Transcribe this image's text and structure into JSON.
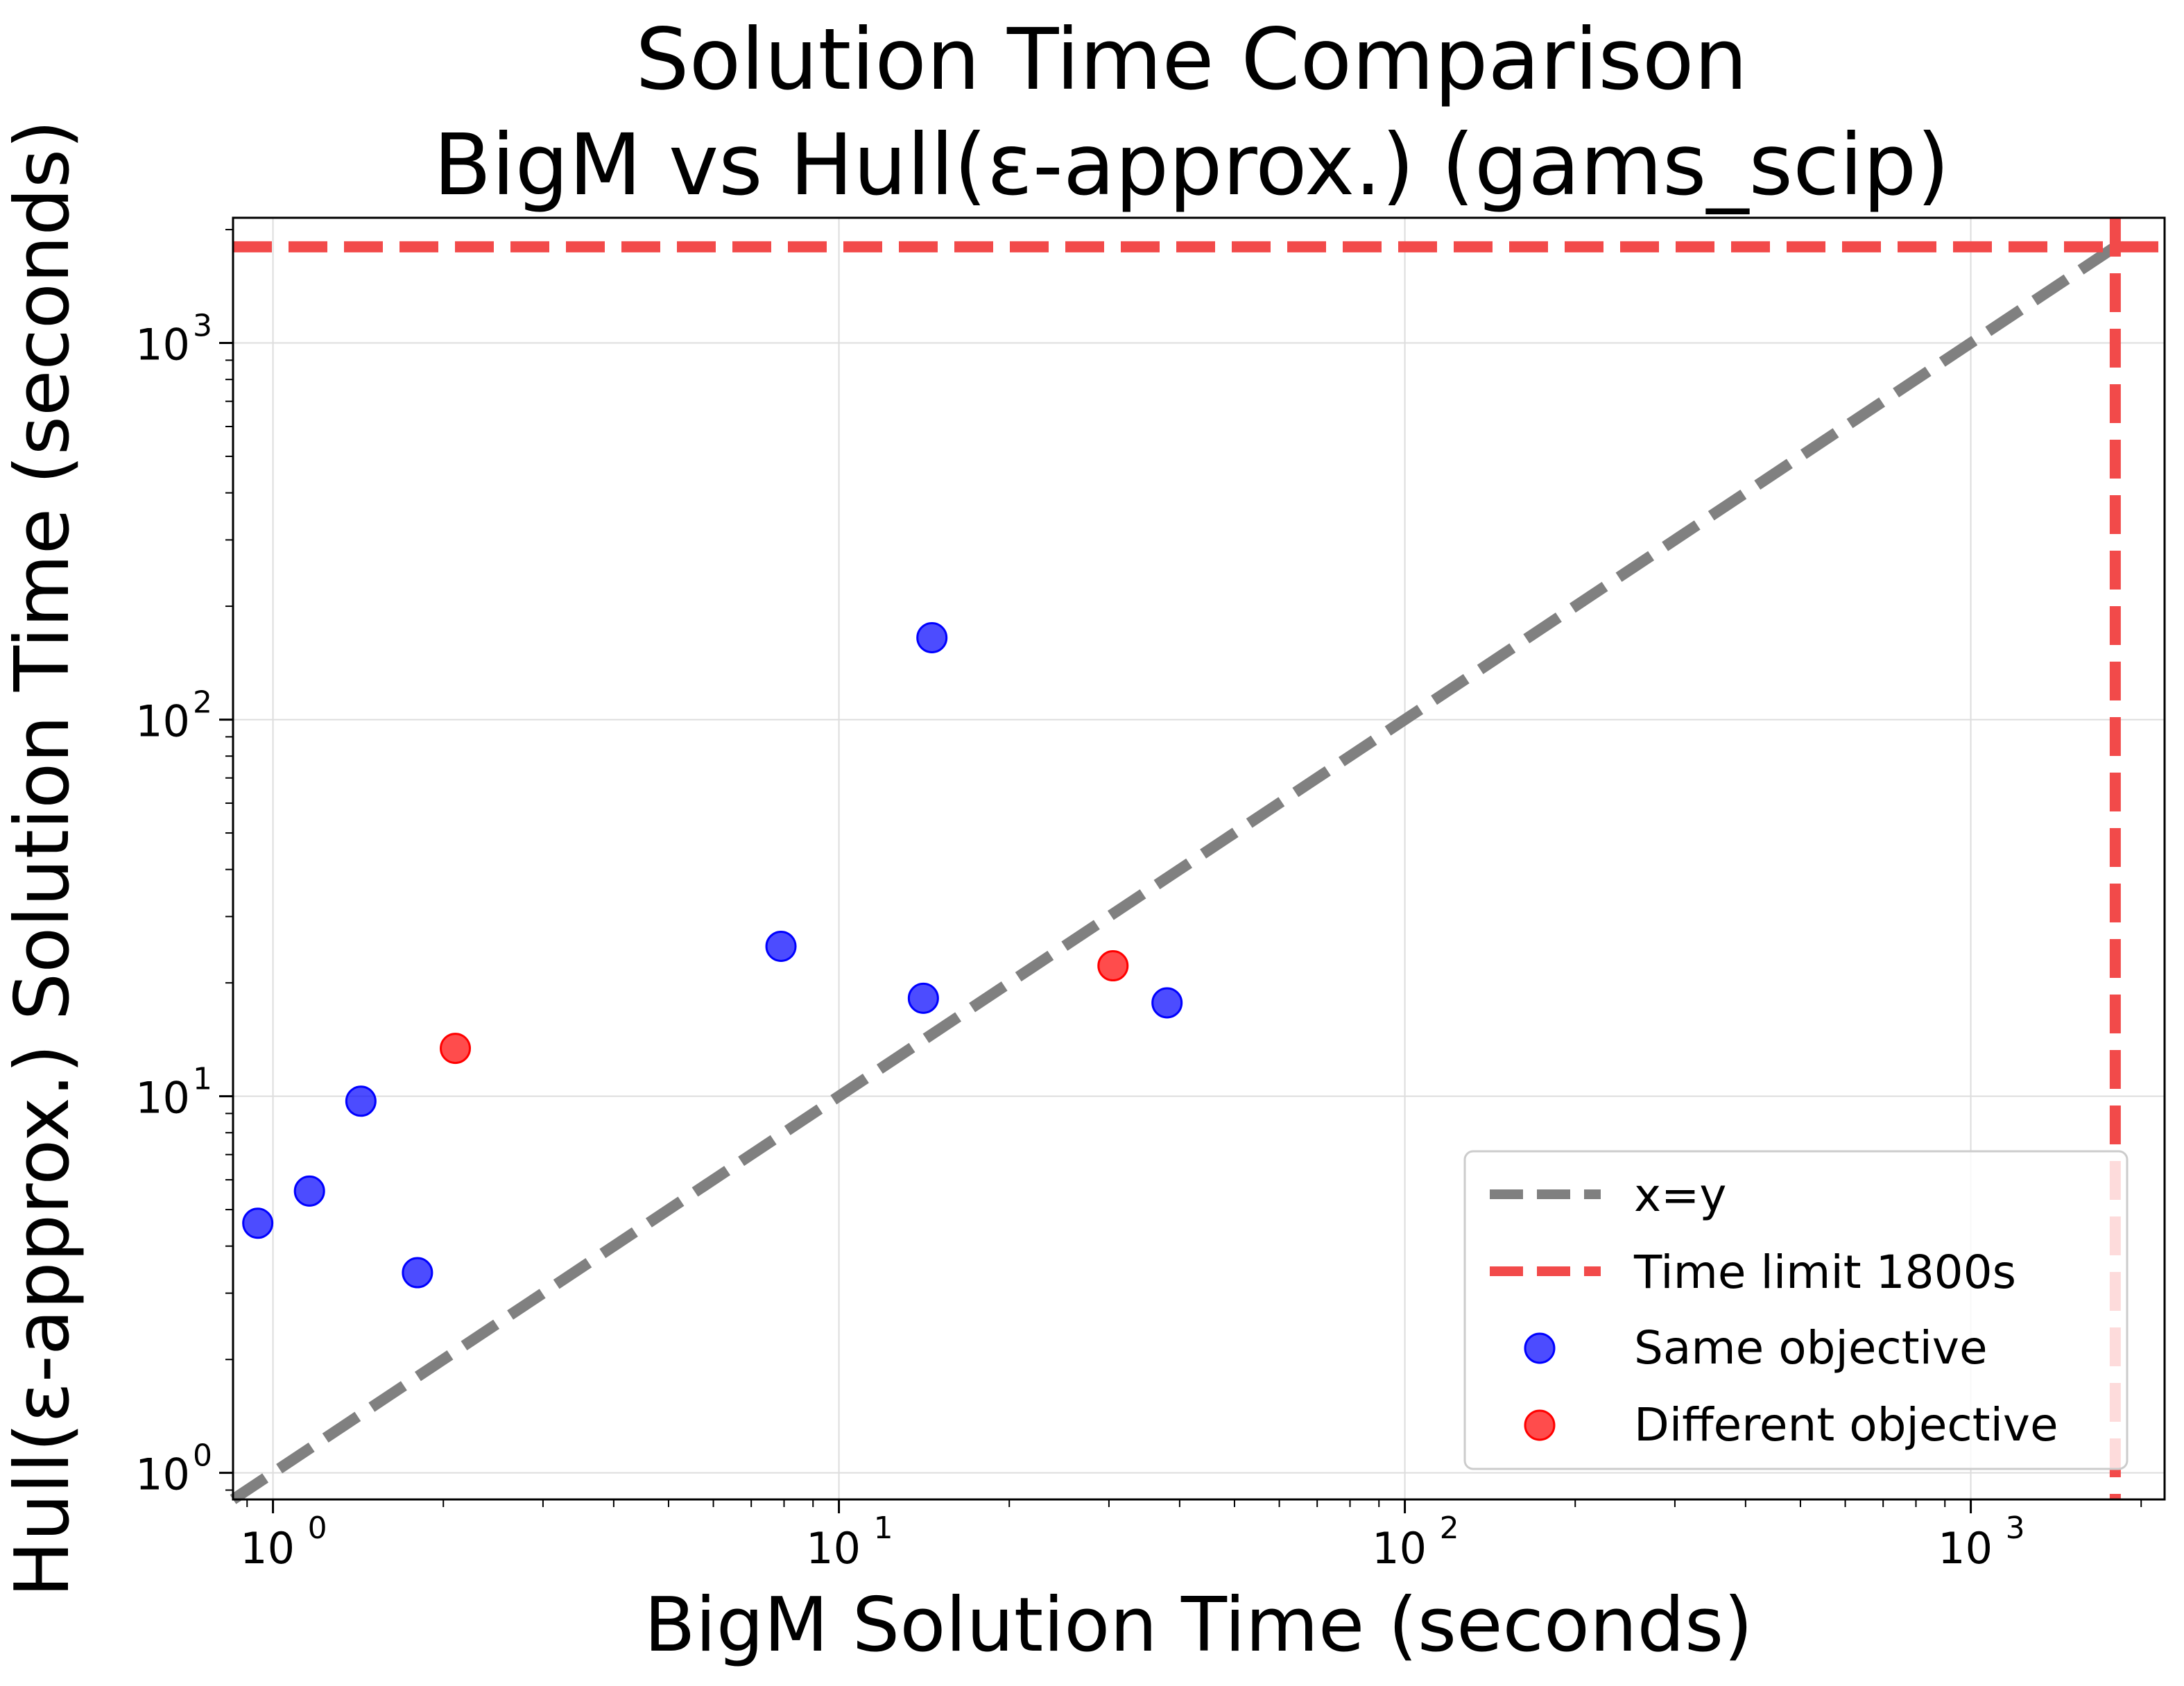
{
  "chart_data": {
    "type": "scatter",
    "title_lines": [
      "Solution Time Comparison",
      "BigM vs Hull(ε-approx.) (gams_scip)"
    ],
    "xlabel": "BigM Solution Time (seconds)",
    "ylabel": "Hull(ε-approx.) Solution Time (seconds)",
    "xscale": "log",
    "yscale": "log",
    "xlim": [
      0.85,
      2200
    ],
    "ylim": [
      0.85,
      2150
    ],
    "x_ticks": [
      {
        "value": 1,
        "base": "10",
        "exp": "0"
      },
      {
        "value": 10,
        "base": "10",
        "exp": "1"
      },
      {
        "value": 100,
        "base": "10",
        "exp": "2"
      },
      {
        "value": 1000,
        "base": "10",
        "exp": "3"
      }
    ],
    "y_ticks": [
      {
        "value": 1,
        "base": "10",
        "exp": "0"
      },
      {
        "value": 10,
        "base": "10",
        "exp": "1"
      },
      {
        "value": 100,
        "base": "10",
        "exp": "2"
      },
      {
        "value": 1000,
        "base": "10",
        "exp": "3"
      }
    ],
    "grid": true,
    "time_limit": 1800,
    "series": [
      {
        "name": "Same objective",
        "color": "#0000ff",
        "points": [
          [
            0.94,
            4.6
          ],
          [
            1.16,
            5.6
          ],
          [
            1.43,
            9.7
          ],
          [
            1.8,
            3.4
          ],
          [
            7.9,
            25
          ],
          [
            14.1,
            18.2
          ],
          [
            14.6,
            165
          ],
          [
            38,
            17.7
          ]
        ]
      },
      {
        "name": "Different objective",
        "color": "#ff0000",
        "points": [
          [
            2.1,
            13.4
          ],
          [
            30.5,
            22.2
          ]
        ]
      }
    ],
    "lines": [
      {
        "name": "x=y",
        "color": "#808080",
        "style": "dashed"
      },
      {
        "name": "Time limit 1800s",
        "color": "#f24a4a",
        "style": "dashed"
      }
    ],
    "legend": {
      "position": "lower-right",
      "entries": [
        "x=y",
        "Time limit 1800s",
        "Same objective",
        "Different objective"
      ]
    }
  }
}
